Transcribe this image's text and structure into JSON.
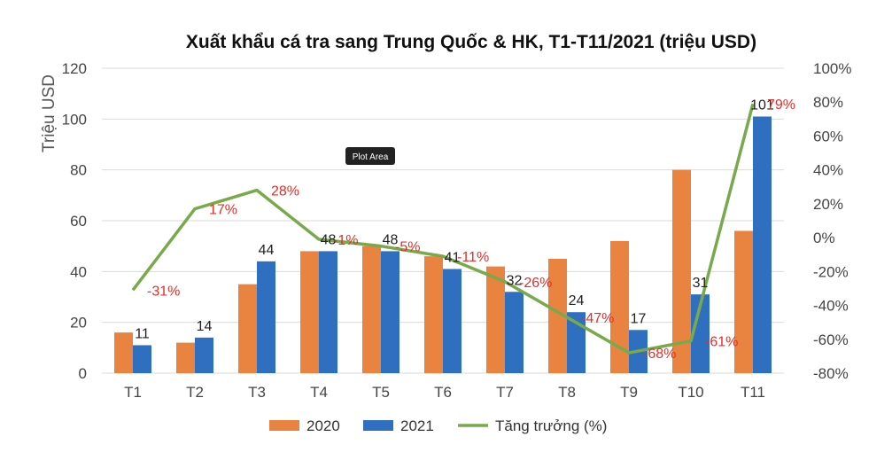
{
  "chart_data": {
    "type": "bar",
    "title": "Xuất khẩu cá tra sang Trung Quốc & HK, T1-T11/2021 (triệu USD)",
    "ylabel": "Triệu USD",
    "xlabel": "",
    "categories": [
      "T1",
      "T2",
      "T3",
      "T4",
      "T5",
      "T6",
      "T7",
      "T8",
      "T9",
      "T10",
      "T11"
    ],
    "ylim": [
      0,
      120
    ],
    "y_ticks": [
      "0",
      "20",
      "40",
      "60",
      "80",
      "100",
      "120"
    ],
    "y2lim": [
      -80,
      100
    ],
    "y2_ticks": [
      "-80%",
      "-60%",
      "-40%",
      "-20%",
      "0%",
      "20%",
      "40%",
      "60%",
      "80%",
      "100%"
    ],
    "series": [
      {
        "name": "2020",
        "type": "bar",
        "color": "#e8843f",
        "values": [
          16,
          12,
          35,
          48,
          50,
          46,
          42,
          45,
          52,
          80,
          56
        ]
      },
      {
        "name": "2021",
        "type": "bar",
        "color": "#2f6fbf",
        "values": [
          11,
          14,
          44,
          48,
          48,
          41,
          32,
          24,
          17,
          31,
          101
        ],
        "labels": [
          "11",
          "14",
          "44",
          "48",
          "48",
          "41",
          "32",
          "24",
          "17",
          "31",
          "101"
        ]
      },
      {
        "name": "Tăng trưởng (%)",
        "type": "line",
        "axis": "right",
        "color": "#78a94a",
        "values": [
          -31,
          17,
          28,
          -1,
          -5,
          -11,
          -26,
          -47,
          -68,
          -61,
          79
        ],
        "labels": [
          "-31%",
          "17%",
          "28%",
          "-1%",
          "-5%",
          "-11%",
          "-26%",
          "-47%",
          "-68%",
          "-61%",
          "79%"
        ]
      }
    ],
    "legend": {
      "position": "bottom",
      "items": [
        "2020",
        "2021",
        "Tăng trưởng (%)"
      ]
    },
    "grid": true
  },
  "tooltip": {
    "text": "Plot Area"
  }
}
